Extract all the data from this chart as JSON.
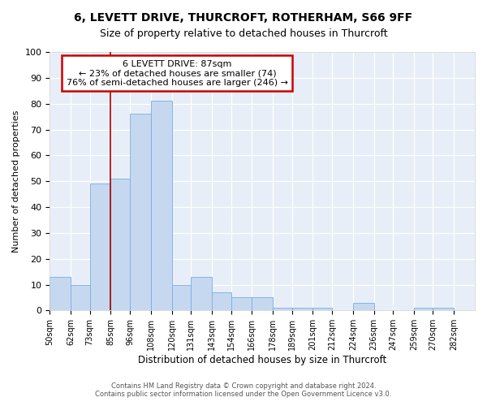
{
  "title": "6, LEVETT DRIVE, THURCROFT, ROTHERHAM, S66 9FF",
  "subtitle": "Size of property relative to detached houses in Thurcroft",
  "xlabel": "Distribution of detached houses by size in Thurcroft",
  "ylabel": "Number of detached properties",
  "bin_labels": [
    "50sqm",
    "62sqm",
    "73sqm",
    "85sqm",
    "96sqm",
    "108sqm",
    "120sqm",
    "131sqm",
    "143sqm",
    "154sqm",
    "166sqm",
    "178sqm",
    "189sqm",
    "201sqm",
    "212sqm",
    "224sqm",
    "236sqm",
    "247sqm",
    "259sqm",
    "270sqm",
    "282sqm"
  ],
  "bin_edges": [
    50,
    62,
    73,
    85,
    96,
    108,
    120,
    131,
    143,
    154,
    166,
    178,
    189,
    201,
    212,
    224,
    236,
    247,
    259,
    270,
    282
  ],
  "bar_heights": [
    13,
    10,
    49,
    51,
    76,
    81,
    10,
    13,
    7,
    5,
    5,
    1,
    1,
    1,
    0,
    3,
    0,
    0,
    1,
    1
  ],
  "bar_color": "#c5d8f0",
  "bar_edge_color": "#7aade0",
  "vline_x": 85,
  "vline_color": "#aa0000",
  "annotation_text": "6 LEVETT DRIVE: 87sqm\n← 23% of detached houses are smaller (74)\n76% of semi-detached houses are larger (246) →",
  "annotation_box_color": "white",
  "annotation_box_edge_color": "#cc0000",
  "ylim": [
    0,
    100
  ],
  "yticks": [
    0,
    10,
    20,
    30,
    40,
    50,
    60,
    70,
    80,
    90,
    100
  ],
  "footer_line1": "Contains HM Land Registry data © Crown copyright and database right 2024.",
  "footer_line2": "Contains public sector information licensed under the Open Government Licence v3.0.",
  "background_color": "#ffffff",
  "plot_bg_color": "#e8eef8",
  "title_fontsize": 10,
  "subtitle_fontsize": 9,
  "xlabel_fontsize": 8.5,
  "ylabel_fontsize": 8,
  "annot_fontsize": 8
}
